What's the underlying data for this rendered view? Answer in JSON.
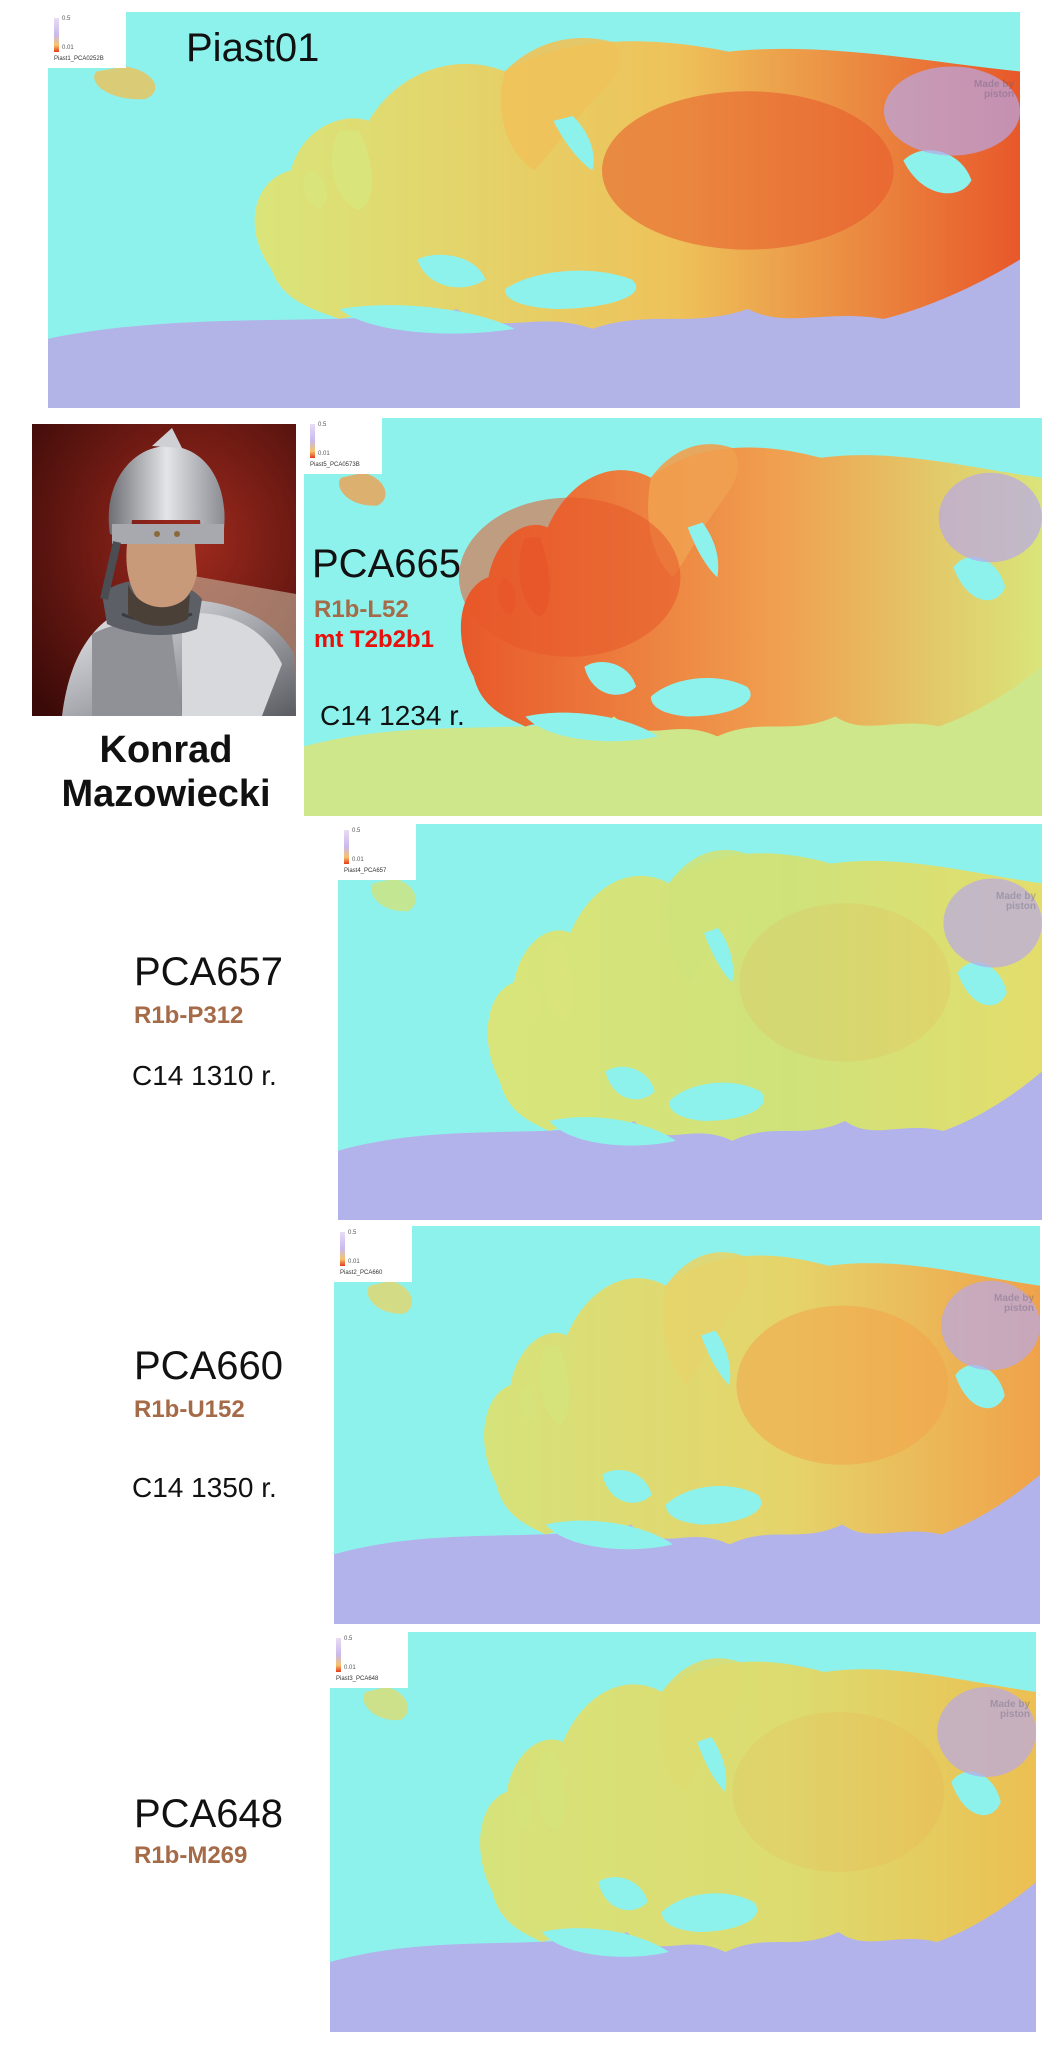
{
  "maps": [
    {
      "id": "piast01",
      "legend_max": "0.5",
      "legend_min": "0.01",
      "legend_caption": "Piast1_PCA0252B",
      "watermark": "Made by piston",
      "hot": "high-east"
    },
    {
      "id": "pca665",
      "legend_max": "0.5",
      "legend_min": "0.01",
      "legend_caption": "Piast5_PCA0573B",
      "watermark": "",
      "hot": "high-west"
    },
    {
      "id": "pca657",
      "legend_max": "0.5",
      "legend_min": "0.01",
      "legend_caption": "Piast4_PCA657",
      "watermark": "Made by piston",
      "hot": "low"
    },
    {
      "id": "pca660",
      "legend_max": "0.5",
      "legend_min": "0.01",
      "legend_caption": "Piast2_PCA660",
      "watermark": "Made by piston",
      "hot": "mid-east"
    },
    {
      "id": "pca648",
      "legend_max": "0.5",
      "legend_min": "0.01",
      "legend_caption": "Piast3_PCA648",
      "watermark": "Made by piston",
      "hot": "low-east"
    }
  ],
  "labels": {
    "piast01": "Piast01",
    "pca665": {
      "name": "PCA665",
      "y": "R1b-L52",
      "mt": "mt T2b2b1",
      "c14": "C14 1234 r."
    },
    "pca657": {
      "name": "PCA657",
      "y": "R1b-P312",
      "c14": "C14 1310 r."
    },
    "pca660": {
      "name": "PCA660",
      "y": "R1b-U152",
      "c14": "C14 1350 r."
    },
    "pca648": {
      "name": "PCA648",
      "y": "R1b-M269"
    }
  },
  "person": {
    "name_line1": "Konrad",
    "name_line2": "Mazowiecki"
  },
  "colors": {
    "sea": "#8ef2ec",
    "land_low": "#d9e57a",
    "hot_mid": "#f2a44a",
    "hot_high": "#e8582a",
    "cold": "#b8a8ea"
  }
}
